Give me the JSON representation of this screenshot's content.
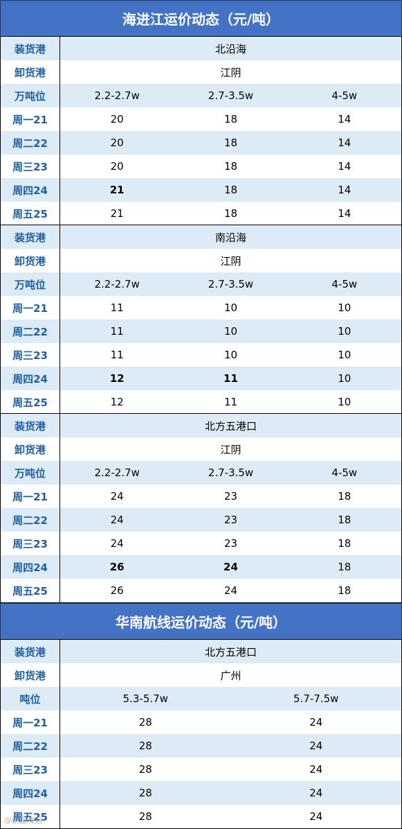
{
  "section1": {
    "title": "海进江运价动态（元/吨）",
    "groups": [
      {
        "load": {
          "label": "装货港",
          "value": "北沿海"
        },
        "unload": {
          "label": "卸货港",
          "value": "江阴"
        },
        "tonnage": {
          "label": "万吨位",
          "cols": [
            "2.2-2.7w",
            "2.7-3.5w",
            "4-5w"
          ]
        },
        "days": [
          {
            "label": "周一21",
            "vals": [
              "20",
              "18",
              "14"
            ],
            "bold": [
              false,
              false,
              false
            ]
          },
          {
            "label": "周二22",
            "vals": [
              "20",
              "18",
              "14"
            ],
            "bold": [
              false,
              false,
              false
            ]
          },
          {
            "label": "周三23",
            "vals": [
              "20",
              "18",
              "14"
            ],
            "bold": [
              false,
              false,
              false
            ]
          },
          {
            "label": "周四24",
            "vals": [
              "21",
              "18",
              "14"
            ],
            "bold": [
              true,
              false,
              false
            ]
          },
          {
            "label": "周五25",
            "vals": [
              "21",
              "18",
              "14"
            ],
            "bold": [
              false,
              false,
              false
            ]
          }
        ]
      },
      {
        "load": {
          "label": "装货港",
          "value": "南沿海"
        },
        "unload": {
          "label": "卸货港",
          "value": "江阴"
        },
        "tonnage": {
          "label": "万吨位",
          "cols": [
            "2.2-2.7w",
            "2.7-3.5w",
            "4-5w"
          ]
        },
        "days": [
          {
            "label": "周一21",
            "vals": [
              "11",
              "10",
              "10"
            ],
            "bold": [
              false,
              false,
              false
            ]
          },
          {
            "label": "周二22",
            "vals": [
              "11",
              "10",
              "10"
            ],
            "bold": [
              false,
              false,
              false
            ]
          },
          {
            "label": "周三23",
            "vals": [
              "11",
              "10",
              "10"
            ],
            "bold": [
              false,
              false,
              false
            ]
          },
          {
            "label": "周四24",
            "vals": [
              "12",
              "11",
              "10"
            ],
            "bold": [
              true,
              true,
              false
            ]
          },
          {
            "label": "周五25",
            "vals": [
              "12",
              "11",
              "10"
            ],
            "bold": [
              false,
              false,
              false
            ]
          }
        ]
      },
      {
        "load": {
          "label": "装货港",
          "value": "北方五港口"
        },
        "unload": {
          "label": "卸货港",
          "value": "江阴"
        },
        "tonnage": {
          "label": "万吨位",
          "cols": [
            "2.2-2.7w",
            "2.7-3.5w",
            "4-5w"
          ]
        },
        "days": [
          {
            "label": "周一21",
            "vals": [
              "24",
              "23",
              "18"
            ],
            "bold": [
              false,
              false,
              false
            ]
          },
          {
            "label": "周二22",
            "vals": [
              "24",
              "23",
              "18"
            ],
            "bold": [
              false,
              false,
              false
            ]
          },
          {
            "label": "周三23",
            "vals": [
              "24",
              "23",
              "18"
            ],
            "bold": [
              false,
              false,
              false
            ]
          },
          {
            "label": "周四24",
            "vals": [
              "26",
              "24",
              "18"
            ],
            "bold": [
              true,
              true,
              false
            ]
          },
          {
            "label": "周五25",
            "vals": [
              "26",
              "24",
              "18"
            ],
            "bold": [
              false,
              false,
              false
            ]
          }
        ]
      }
    ]
  },
  "section2": {
    "title": "华南航线运价动态（元/吨）",
    "load": {
      "label": "装货港",
      "value": "北方五港口"
    },
    "unload": {
      "label": "卸货港",
      "value": "广州"
    },
    "tonnage": {
      "label": "吨位",
      "cols": [
        "5.3-5.7w",
        "5.7-7.5w"
      ]
    },
    "days": [
      {
        "label": "周一21",
        "vals": [
          "28",
          "24"
        ]
      },
      {
        "label": "周二22",
        "vals": [
          "28",
          "24"
        ]
      },
      {
        "label": "周三23",
        "vals": [
          "28",
          "24"
        ]
      },
      {
        "label": "周四24",
        "vals": [
          "28",
          "24"
        ]
      },
      {
        "label": "周五25",
        "vals": [
          "28",
          "24"
        ]
      }
    ]
  },
  "watermark": "@运盛海运"
}
